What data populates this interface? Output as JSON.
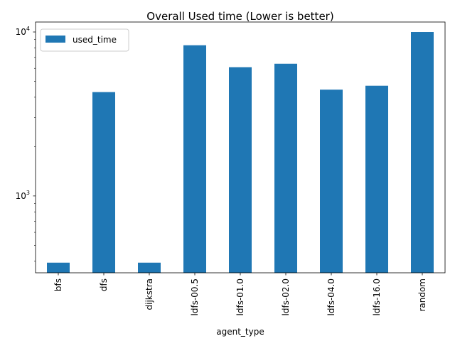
{
  "chart_data": {
    "type": "bar",
    "title": "Overall Used time (Lower is better)",
    "xlabel": "agent_type",
    "ylabel": "",
    "yscale": "log",
    "ylim": [
      340,
      11500
    ],
    "y_ticks": [
      {
        "value": 1000,
        "base": "10",
        "exp": "3"
      },
      {
        "value": 10000,
        "base": "10",
        "exp": "4"
      }
    ],
    "categories": [
      "bfs",
      "dfs",
      "dijkstra",
      "ldfs-00.5",
      "ldfs-01.0",
      "ldfs-02.0",
      "ldfs-04.0",
      "ldfs-16.0",
      "random"
    ],
    "series": [
      {
        "name": "used_time",
        "color": "#1f77b4",
        "values": [
          392,
          4300,
          392,
          8300,
          6100,
          6400,
          4450,
          4700,
          10000
        ]
      }
    ],
    "legend": {
      "placement": "top-left"
    },
    "grid": false
  }
}
